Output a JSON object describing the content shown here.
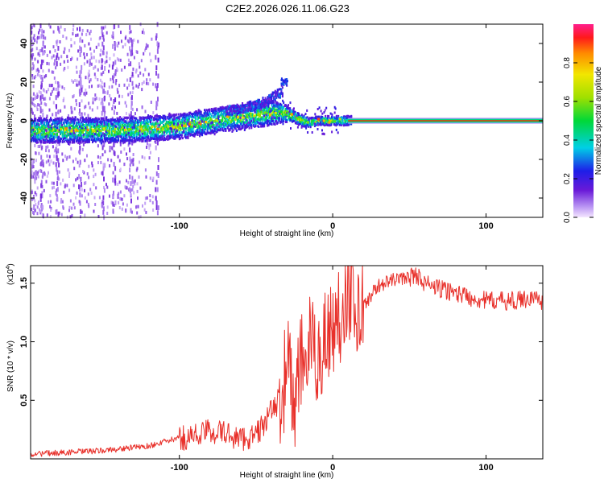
{
  "title": "C2E2.2026.026.11.06.G23",
  "chart_data": [
    {
      "type": "heatmap",
      "name": "spectrogram",
      "xlabel": "Height of straight line (km)",
      "ylabel": "Frequency (Hz)",
      "xlim": [
        -197,
        137
      ],
      "ylim": [
        -50,
        50
      ],
      "xticks": [
        -100,
        0,
        100
      ],
      "yticks": [
        -40,
        -20,
        0,
        20,
        40
      ],
      "track": {
        "x": [
          -197,
          -180,
          -160,
          -140,
          -120,
          -100,
          -85,
          -70,
          -60,
          -50,
          -40,
          -32,
          -25,
          -20,
          -15,
          -10,
          -5,
          0,
          5,
          10,
          137
        ],
        "y": [
          -5,
          -5,
          -5,
          -5,
          -4,
          -3,
          -1,
          1,
          2,
          3,
          4,
          4,
          2,
          0,
          -1,
          0,
          0,
          0,
          0,
          0,
          0
        ],
        "spread": [
          4,
          4,
          4,
          4,
          4,
          4,
          4,
          4,
          4,
          4,
          4,
          3,
          2,
          2,
          1.5,
          1.5,
          1.5,
          1.5,
          1.5,
          1.5,
          1.2
        ]
      },
      "branch": {
        "x": [
          -70,
          -50,
          -40,
          -33
        ],
        "y": [
          5,
          8,
          12,
          15
        ]
      },
      "blob": {
        "x": -32,
        "y": 20
      },
      "colorbar": {
        "label": "Normalized spectral amplitude",
        "ticks": [
          "0.0",
          "0.2",
          "0.4",
          "0.6",
          "0.8"
        ],
        "tick_values": [
          0.0,
          0.2,
          0.4,
          0.6,
          0.8
        ],
        "range": [
          0,
          1
        ]
      }
    },
    {
      "type": "line",
      "name": "snr",
      "xlabel": "Height of straight line (km)",
      "ylabel": "SNR (10 * v/v)",
      "multiplier": "(x10",
      "multiplier_exp": "4",
      "multiplier_close": ")",
      "xlim": [
        -197,
        137
      ],
      "ylim": [
        0,
        1.65
      ],
      "xticks": [
        -100,
        0,
        100
      ],
      "yticks": [
        0.5,
        1.0,
        1.5
      ],
      "ytick_labels": [
        "0.5",
        "1.0",
        "1.5"
      ],
      "color": "#e8302a",
      "envelope": {
        "x": [
          -197,
          -150,
          -120,
          -100,
          -90,
          -80,
          -70,
          -60,
          -50,
          -40,
          -35,
          -30,
          -28,
          -25,
          -20,
          -15,
          -10,
          -5,
          0,
          5,
          10,
          15,
          20,
          25,
          30,
          40,
          50,
          55,
          60,
          70,
          80,
          90,
          100,
          110,
          120,
          130,
          137
        ],
        "y": [
          0.03,
          0.06,
          0.1,
          0.17,
          0.2,
          0.24,
          0.22,
          0.17,
          0.2,
          0.4,
          0.5,
          0.75,
          0.8,
          0.4,
          0.85,
          0.95,
          0.85,
          1.05,
          1.1,
          1.25,
          1.5,
          1.3,
          1.3,
          1.4,
          1.48,
          1.53,
          1.55,
          1.57,
          1.5,
          1.45,
          1.42,
          1.38,
          1.35,
          1.35,
          1.35,
          1.38,
          1.35
        ]
      }
    }
  ]
}
